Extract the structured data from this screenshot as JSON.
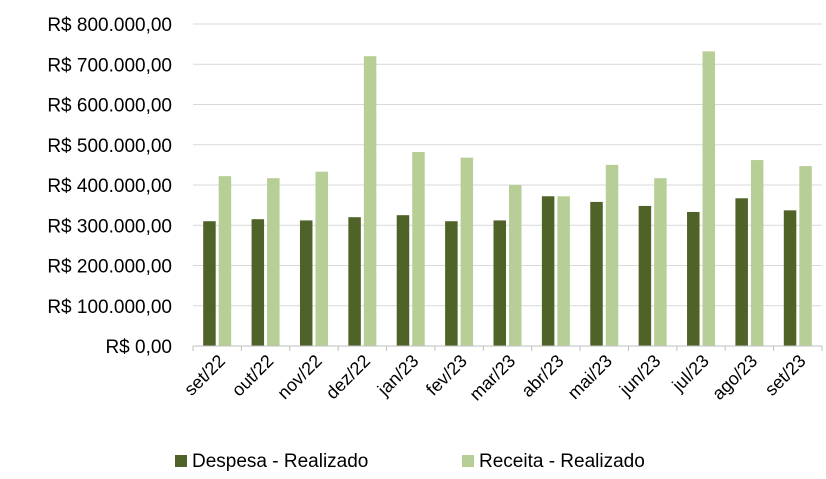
{
  "chart_data": {
    "type": "bar",
    "categories": [
      "set/22",
      "out/22",
      "nov/22",
      "dez/22",
      "jan/23",
      "fev/23",
      "mar/23",
      "abr/23",
      "mai/23",
      "jun/23",
      "jul/23",
      "ago/23",
      "set/23"
    ],
    "series": [
      {
        "name": "Despesa - Realizado",
        "color": "#4f6228",
        "values": [
          310000,
          315000,
          312000,
          320000,
          325000,
          310000,
          312000,
          372000,
          358000,
          348000,
          333000,
          367000,
          337000
        ]
      },
      {
        "name": "Receita - Realizado",
        "color": "#b7cf97",
        "values": [
          422000,
          417000,
          433000,
          720000,
          482000,
          468000,
          400000,
          372000,
          450000,
          417000,
          732000,
          462000,
          447000
        ]
      }
    ],
    "yticks": [
      "R$ 0,00",
      "R$ 100.000,00",
      "R$ 200.000,00",
      "R$ 300.000,00",
      "R$ 400.000,00",
      "R$ 500.000,00",
      "R$ 600.000,00",
      "R$ 700.000,00",
      "R$ 800.000,00"
    ],
    "ylim": [
      0,
      800000
    ],
    "ystep": 100000,
    "grid": true,
    "legend_position": "bottom"
  }
}
